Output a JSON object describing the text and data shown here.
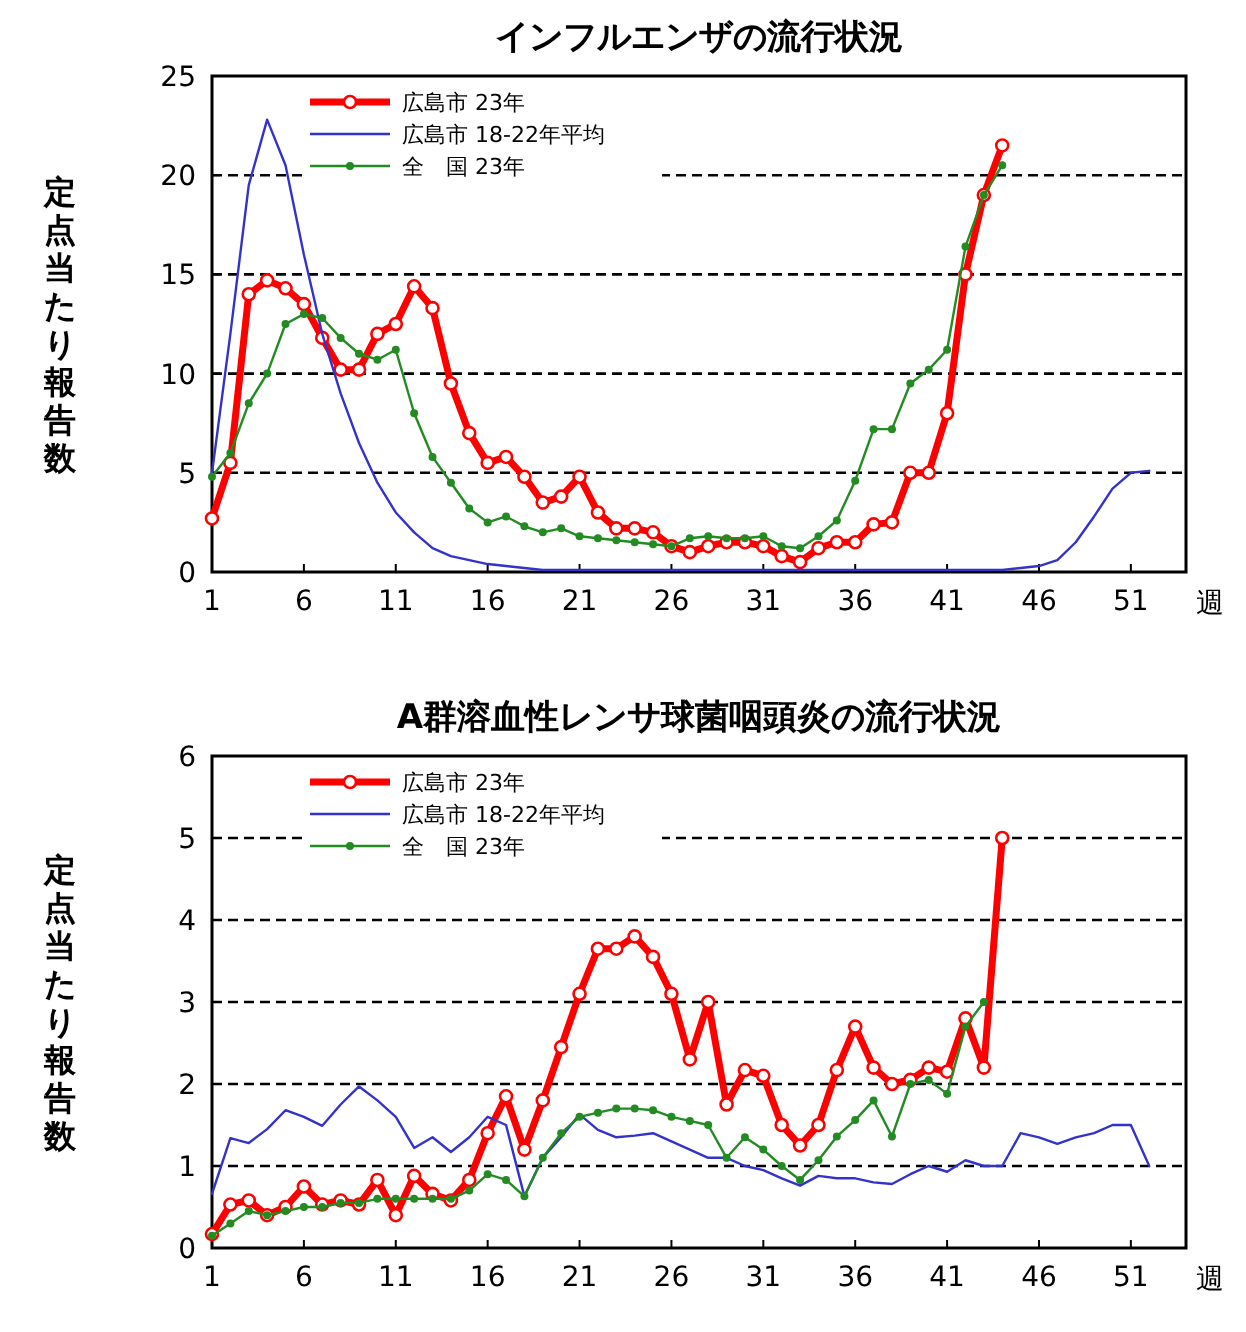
{
  "chart_data": [
    {
      "type": "line",
      "title": "インフルエンザの流行状況",
      "ylabel": "定点当たり報告数",
      "xlabel": "週",
      "x": [
        1,
        2,
        3,
        4,
        5,
        6,
        7,
        8,
        9,
        10,
        11,
        12,
        13,
        14,
        15,
        16,
        17,
        18,
        19,
        20,
        21,
        22,
        23,
        24,
        25,
        26,
        27,
        28,
        29,
        30,
        31,
        32,
        33,
        34,
        35,
        36,
        37,
        38,
        39,
        40,
        41,
        42,
        43,
        44,
        45,
        46,
        47,
        48,
        49,
        50,
        51,
        52
      ],
      "xlim": [
        1,
        54
      ],
      "xticks": [
        1,
        6,
        11,
        16,
        21,
        26,
        31,
        36,
        41,
        46,
        51
      ],
      "ylim": [
        0,
        25
      ],
      "yticks": [
        0,
        5,
        10,
        15,
        20,
        25
      ],
      "grid": "y",
      "legend": "top left",
      "series": [
        {
          "name": "広島市 23年",
          "color": "#ff0000",
          "marker": "circle",
          "values": [
            2.7,
            5.5,
            14,
            14.7,
            14.3,
            13.5,
            11.8,
            10.2,
            10.2,
            12,
            12.5,
            14.4,
            13.3,
            9.5,
            7,
            5.5,
            5.8,
            4.8,
            3.5,
            3.8,
            4.8,
            3,
            2.2,
            2.2,
            2,
            1.3,
            1,
            1.3,
            1.5,
            1.5,
            1.3,
            0.8,
            0.5,
            1.2,
            1.5,
            1.5,
            2.4,
            2.5,
            5,
            5,
            8,
            15,
            19,
            21.5,
            null,
            null,
            null,
            null,
            null,
            null,
            null,
            null
          ]
        },
        {
          "name": "広島市 18-22年平均",
          "color": "#3333cc",
          "marker": "none",
          "values": [
            5,
            12,
            19.5,
            22.8,
            20.5,
            16,
            12,
            9,
            6.5,
            4.5,
            3,
            2,
            1.2,
            0.8,
            0.6,
            0.4,
            0.3,
            0.2,
            0.1,
            0.1,
            0.1,
            0.1,
            0.1,
            0.1,
            0.1,
            0.1,
            0.1,
            0.1,
            0.1,
            0.1,
            0.1,
            0.1,
            0.1,
            0.1,
            0.1,
            0.1,
            0.1,
            0.1,
            0.1,
            0.1,
            0.1,
            0.1,
            0.1,
            0.1,
            0.2,
            0.3,
            0.6,
            1.5,
            2.8,
            4.2,
            5,
            5.1
          ]
        },
        {
          "name": "全　国 23年",
          "color": "#228b22",
          "marker": "circle",
          "values": [
            4.8,
            6,
            8.5,
            10,
            12.5,
            13,
            12.8,
            11.8,
            11,
            10.7,
            11.2,
            8,
            5.8,
            4.5,
            3.2,
            2.5,
            2.8,
            2.3,
            2,
            2.2,
            1.8,
            1.7,
            1.6,
            1.5,
            1.4,
            1.3,
            1.7,
            1.8,
            1.7,
            1.7,
            1.8,
            1.3,
            1.2,
            1.8,
            2.6,
            4.6,
            7.2,
            7.2,
            9.5,
            10.2,
            11.2,
            16.4,
            19,
            20.5,
            null,
            null,
            null,
            null,
            null,
            null,
            null,
            null
          ]
        }
      ]
    },
    {
      "type": "line",
      "title": "A群溶血性レンサ球菌咽頭炎の流行状況",
      "ylabel": "定点当たり報告数",
      "xlabel": "週",
      "x": [
        1,
        2,
        3,
        4,
        5,
        6,
        7,
        8,
        9,
        10,
        11,
        12,
        13,
        14,
        15,
        16,
        17,
        18,
        19,
        20,
        21,
        22,
        23,
        24,
        25,
        26,
        27,
        28,
        29,
        30,
        31,
        32,
        33,
        34,
        35,
        36,
        37,
        38,
        39,
        40,
        41,
        42,
        43,
        44,
        45,
        46,
        47,
        48,
        49,
        50,
        51,
        52
      ],
      "xlim": [
        1,
        54
      ],
      "xticks": [
        1,
        6,
        11,
        16,
        21,
        26,
        31,
        36,
        41,
        46,
        51
      ],
      "ylim": [
        0,
        6
      ],
      "yticks": [
        0,
        1,
        2,
        3,
        4,
        5,
        6
      ],
      "grid": "y",
      "legend": "top left",
      "series": [
        {
          "name": "広島市 23年",
          "color": "#ff0000",
          "marker": "circle",
          "values": [
            0.17,
            0.53,
            0.58,
            0.4,
            0.5,
            0.75,
            0.53,
            0.58,
            0.53,
            0.83,
            0.4,
            0.88,
            0.66,
            0.58,
            0.83,
            1.4,
            1.85,
            1.2,
            1.8,
            2.45,
            3.1,
            3.65,
            3.65,
            3.8,
            3.55,
            3.1,
            2.3,
            3,
            1.75,
            2.17,
            2.1,
            1.5,
            1.25,
            1.5,
            2.17,
            2.7,
            2.2,
            2,
            2.05,
            2.2,
            2.15,
            2.8,
            2.2,
            5,
            null,
            null,
            null,
            null,
            null,
            null,
            null,
            null
          ]
        },
        {
          "name": "広島市 18-22年平均",
          "color": "#3333cc",
          "marker": "none",
          "values": [
            0.66,
            1.34,
            1.28,
            1.45,
            1.68,
            1.6,
            1.49,
            1.75,
            1.97,
            1.8,
            1.6,
            1.22,
            1.35,
            1.17,
            1.35,
            1.6,
            1.5,
            0.63,
            1.1,
            1.35,
            1.63,
            1.44,
            1.35,
            1.37,
            1.4,
            1.3,
            1.2,
            1.1,
            1.1,
            1,
            0.95,
            0.85,
            0.76,
            0.88,
            0.85,
            0.85,
            0.8,
            0.78,
            0.9,
            1,
            0.93,
            1.07,
            1,
            1,
            1.4,
            1.35,
            1.27,
            1.35,
            1.4,
            1.5,
            1.5,
            1
          ]
        },
        {
          "name": "全　国 23年",
          "color": "#228b22",
          "marker": "circle",
          "values": [
            0.15,
            0.3,
            0.45,
            0.4,
            0.45,
            0.5,
            0.5,
            0.55,
            0.55,
            0.6,
            0.6,
            0.6,
            0.6,
            0.6,
            0.7,
            0.9,
            0.83,
            0.63,
            1.1,
            1.4,
            1.6,
            1.65,
            1.7,
            1.7,
            1.68,
            1.6,
            1.55,
            1.5,
            1.1,
            1.35,
            1.2,
            1,
            0.83,
            1.07,
            1.36,
            1.56,
            1.8,
            1.36,
            2,
            2.05,
            1.88,
            2.7,
            3,
            null,
            null,
            null,
            null,
            null,
            null,
            null,
            null,
            null
          ]
        }
      ]
    }
  ]
}
